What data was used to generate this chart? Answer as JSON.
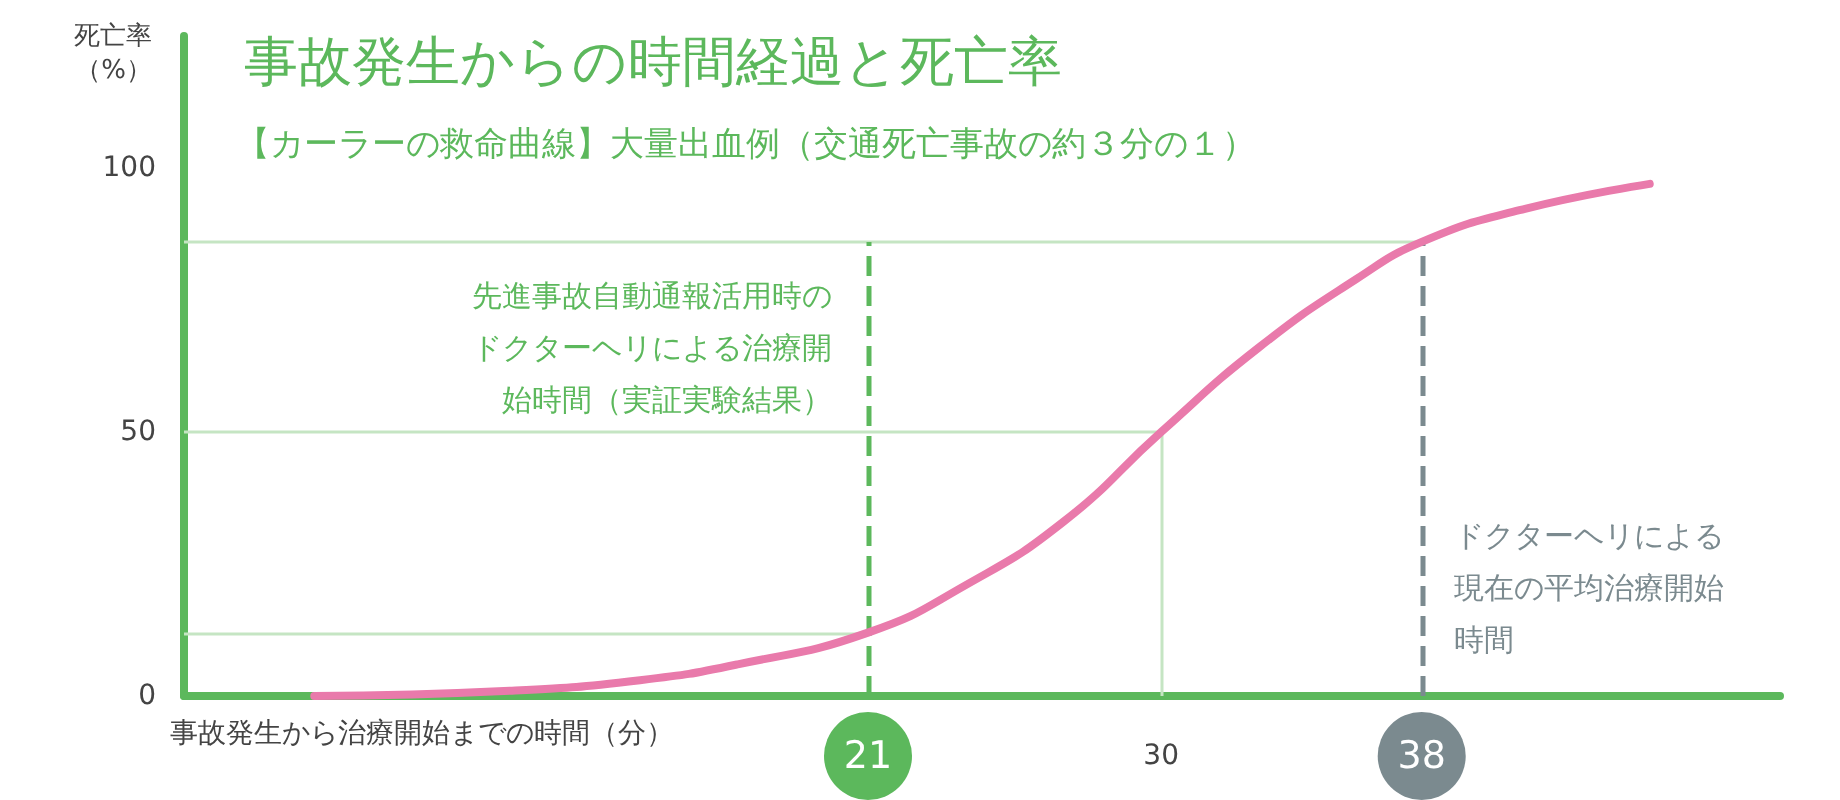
{
  "chart_data": {
    "type": "line",
    "title": "事故発生からの時間経過と死亡率",
    "subtitle": "【カーラーの救命曲線】大量出血例（交通死亡事故の約３分の１）",
    "xlabel": "事故発生から治療開始までの時間（分）",
    "ylabel": "死亡率（%）",
    "series": [
      {
        "color": "#e97aab",
        "x": [
          4,
          10,
          14,
          17,
          21,
          24,
          27,
          30,
          33,
          36,
          38,
          41,
          45
        ],
        "values": [
          0,
          1,
          3,
          6,
          12,
          21,
          33,
          50,
          66,
          79,
          86,
          92,
          97
        ]
      }
    ],
    "xlim": [
      0,
      49
    ],
    "xticks": [
      21,
      30,
      38
    ],
    "ylim": [
      0,
      125
    ],
    "yticks": [
      0,
      50,
      100
    ],
    "ref_lines": [
      {
        "axis": "y",
        "value": 86,
        "color": "#c5e5c3",
        "line_style": "solid"
      },
      {
        "axis": "y",
        "value": 50,
        "color": "#c5e5c3",
        "line_style": "solid"
      },
      {
        "axis": "y",
        "value": 12,
        "color": "#c5e5c3",
        "line_style": "solid"
      },
      {
        "axis": "x",
        "value": 30,
        "color": "#c5e5c3",
        "line_style": "solid"
      },
      {
        "axis": "x",
        "value": 21,
        "color": "#5cb85c",
        "line_style": "dashed",
        "label": "先進事故自動通報活用時のドクターヘリによる治療開始時間（実証実験結果）"
      },
      {
        "axis": "x",
        "value": 38,
        "color": "#7b8a8f",
        "line_style": "dashed",
        "label": "ドクターヘリによる現在の平均治療開始時間"
      }
    ],
    "grid": false,
    "marker": "none",
    "line_style": "solid"
  }
}
